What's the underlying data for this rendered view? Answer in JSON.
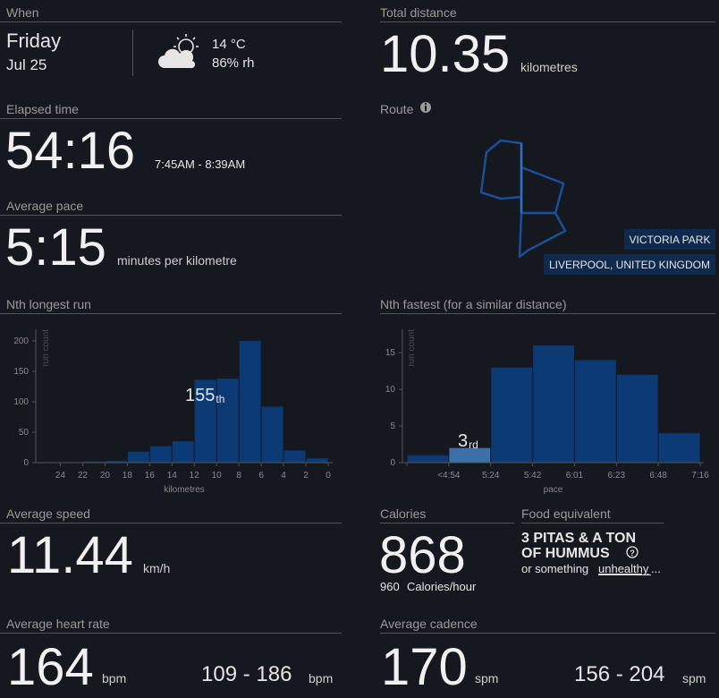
{
  "when": {
    "label": "When",
    "day": "Friday",
    "date": "Jul 25",
    "temperature": "14 °C",
    "humidity": "86% rh"
  },
  "distance": {
    "label": "Total distance",
    "value": "10.35",
    "unit": "kilometres"
  },
  "elapsed": {
    "label": "Elapsed time",
    "value": "54:16",
    "range": "7:45AM - 8:39AM"
  },
  "pace": {
    "label": "Average pace",
    "value": "5:15",
    "unit": "minutes per kilometre"
  },
  "route": {
    "label": "Route",
    "places": [
      "VICTORIA PARK",
      "LIVERPOOL, UNITED KINGDOM"
    ]
  },
  "longest_run": {
    "label": "Nth longest run",
    "chart": {
      "type": "histogram",
      "bins": [
        24,
        22,
        20,
        18,
        16,
        14,
        12,
        10,
        8,
        6,
        4,
        2,
        0
      ],
      "values": [
        0,
        2,
        3,
        18,
        27,
        35,
        136,
        138,
        200,
        92,
        20,
        7
      ],
      "xlim": [
        26.2,
        -0.4
      ],
      "xticks": [
        24,
        22,
        20,
        18,
        16,
        14,
        12,
        10,
        8,
        6,
        4,
        2,
        0
      ],
      "ylim": [
        0,
        219
      ],
      "yticks": [
        0,
        50,
        100,
        150,
        200
      ],
      "xlabel": "kilometres",
      "ylabel": "run count",
      "color": "#0b3a75",
      "annotation": {
        "rank": "155",
        "suffix": "th"
      }
    }
  },
  "fastest": {
    "label": "Nth fastest (for a similar distance)",
    "chart": {
      "type": "histogram",
      "bin_labels": [
        null,
        "<4:54",
        "5:24",
        "5:42",
        "6:01",
        "6:23",
        "6:48",
        "7:16"
      ],
      "values": [
        1,
        2,
        13,
        16,
        14,
        12,
        4
      ],
      "highlight": 1,
      "highlight_color": "#3d6fa8",
      "ylim": [
        0,
        18.2
      ],
      "yticks": [
        0,
        5,
        10,
        15
      ],
      "xlabel": "pace",
      "ylabel": "run count",
      "color": "#0b3a75",
      "annotation": {
        "rank": "3",
        "suffix": "rd"
      }
    }
  },
  "speed": {
    "label": "Average speed",
    "value": "11.44",
    "unit": "km/h"
  },
  "calories": {
    "label": "Calories",
    "value": "868",
    "per_hour": "960",
    "per_hour_unit": "Calories/hour"
  },
  "food": {
    "label": "Food equivalent",
    "lines": [
      "3 PITAS & A TON",
      "OF HUMMUS"
    ],
    "note": "or something",
    "link": "unhealthy",
    "ellipsis": "..."
  },
  "heart_rate": {
    "label": "Average heart rate",
    "value": "164",
    "unit": "bpm",
    "range": "109 - 186",
    "range_unit": "bpm"
  },
  "cadence": {
    "label": "Average cadence",
    "value": "170",
    "unit": "spm",
    "range": "156 - 204",
    "range_unit": "spm"
  }
}
